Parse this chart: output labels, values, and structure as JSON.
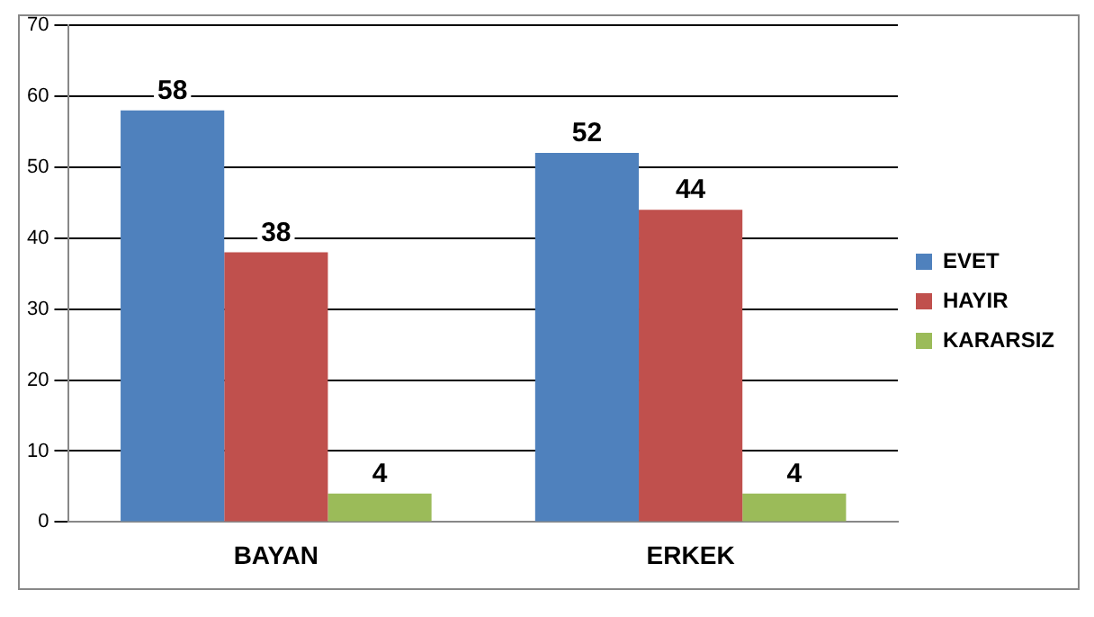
{
  "chart_data": {
    "type": "bar",
    "categories": [
      "BAYAN",
      "ERKEK"
    ],
    "series": [
      {
        "name": "EVET",
        "color": "#4f81bd",
        "values": [
          58,
          52
        ]
      },
      {
        "name": "HAYIR",
        "color": "#c0504d",
        "values": [
          38,
          44
        ]
      },
      {
        "name": "KARARSIZ",
        "color": "#9bbb59",
        "values": [
          4,
          4
        ]
      }
    ],
    "ylim": [
      0,
      70
    ],
    "yticks": [
      0,
      10,
      20,
      30,
      40,
      50,
      60,
      70
    ],
    "grid": "y",
    "legend": "right",
    "data_labels": true
  }
}
